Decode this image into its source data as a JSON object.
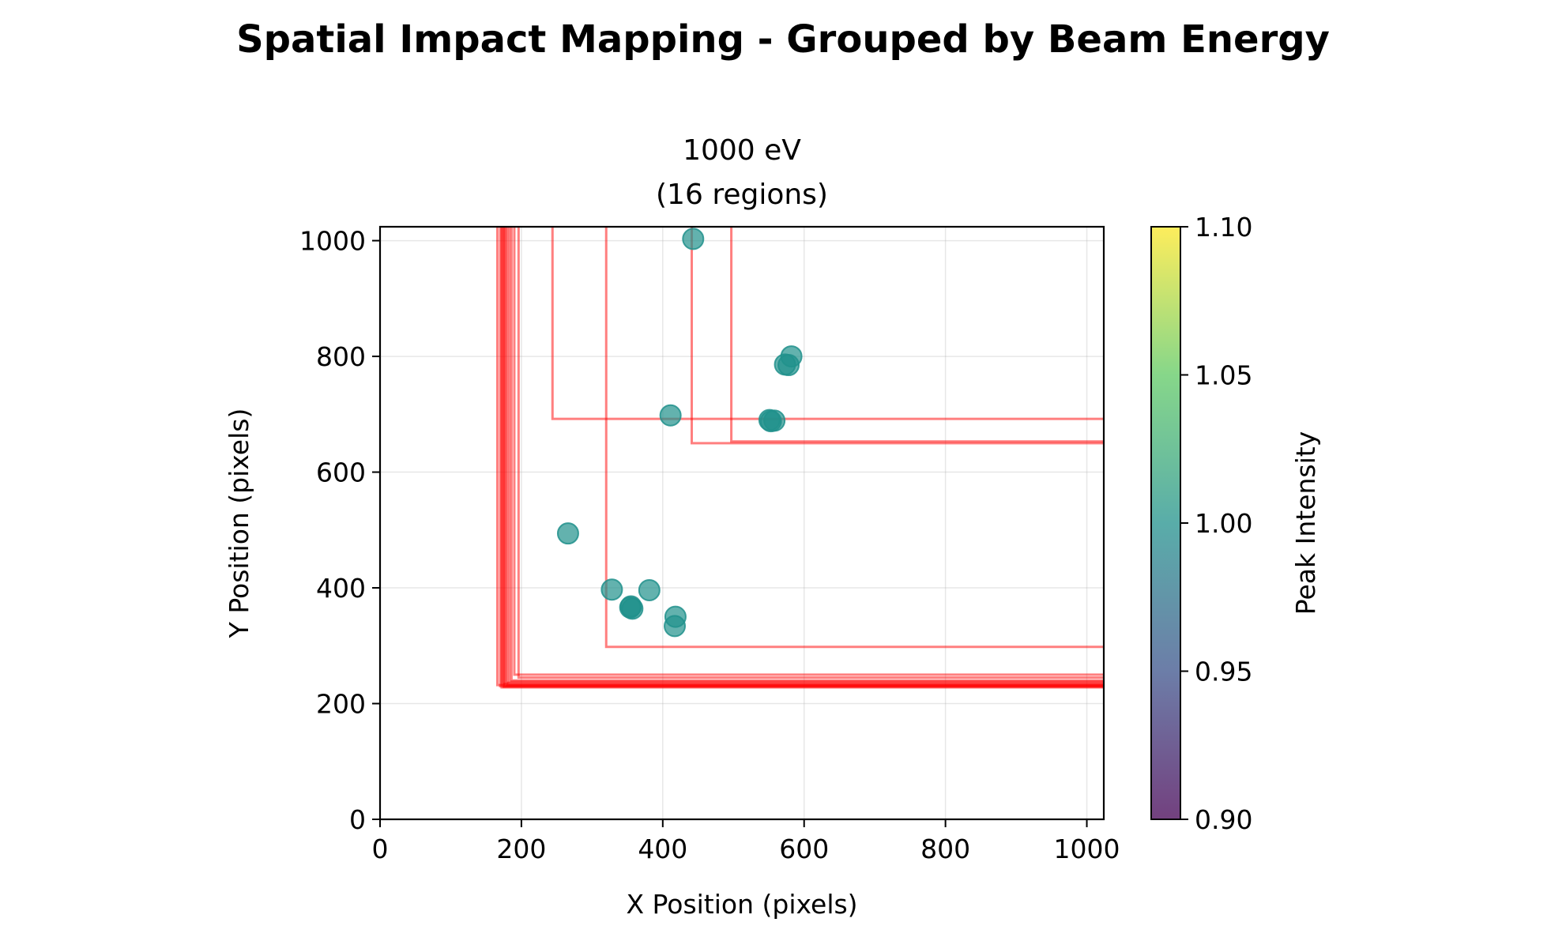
{
  "chart_data": {
    "type": "scatter",
    "suptitle": "Spatial Impact Mapping - Grouped by Beam Energy",
    "title_line1": "1000 eV",
    "title_line2": "(16 regions)",
    "xlabel": "X Position (pixels)",
    "ylabel": "Y Position (pixels)",
    "xlim": [
      0,
      1024
    ],
    "ylim": [
      0,
      1024
    ],
    "xticks": [
      0,
      200,
      400,
      600,
      800,
      1000
    ],
    "yticks": [
      0,
      200,
      400,
      600,
      800,
      1000
    ],
    "grid": true,
    "colorbar": {
      "label": "Peak Intensity",
      "range": [
        0.9,
        1.1
      ],
      "ticks": [
        "0.90",
        "0.95",
        "1.00",
        "1.05",
        "1.10"
      ],
      "colormap": "viridis"
    },
    "point_color": "#21918c",
    "region_color": "#ff0000",
    "points": [
      {
        "x": 443,
        "y": 1003,
        "intensity": 1.0
      },
      {
        "x": 582,
        "y": 800,
        "intensity": 1.0
      },
      {
        "x": 573,
        "y": 786,
        "intensity": 1.0
      },
      {
        "x": 578,
        "y": 785,
        "intensity": 1.0
      },
      {
        "x": 411,
        "y": 698,
        "intensity": 1.0
      },
      {
        "x": 551,
        "y": 690,
        "intensity": 1.0
      },
      {
        "x": 558,
        "y": 689,
        "intensity": 1.0
      },
      {
        "x": 266,
        "y": 494,
        "intensity": 1.0
      },
      {
        "x": 328,
        "y": 397,
        "intensity": 1.0
      },
      {
        "x": 381,
        "y": 396,
        "intensity": 1.0
      },
      {
        "x": 354,
        "y": 366,
        "intensity": 1.0
      },
      {
        "x": 357,
        "y": 364,
        "intensity": 1.0
      },
      {
        "x": 418,
        "y": 350,
        "intensity": 1.0
      },
      {
        "x": 417,
        "y": 334,
        "intensity": 1.0
      },
      {
        "x": 355,
        "y": 368,
        "intensity": 1.0
      },
      {
        "x": 553,
        "y": 688,
        "intensity": 1.0
      }
    ],
    "regions": [
      {
        "x0": 166,
        "y0": 232
      },
      {
        "x0": 170,
        "y0": 230
      },
      {
        "x0": 173,
        "y0": 234
      },
      {
        "x0": 175,
        "y0": 229
      },
      {
        "x0": 178,
        "y0": 236
      },
      {
        "x0": 180,
        "y0": 232
      },
      {
        "x0": 183,
        "y0": 238
      },
      {
        "x0": 186,
        "y0": 240
      },
      {
        "x0": 190,
        "y0": 250
      },
      {
        "x0": 196,
        "y0": 245
      },
      {
        "x0": 244,
        "y0": 692
      },
      {
        "x0": 320,
        "y0": 298
      },
      {
        "x0": 441,
        "y0": 650
      },
      {
        "x0": 497,
        "y0": 653
      },
      {
        "x0": 172,
        "y0": 228
      },
      {
        "x0": 176,
        "y0": 231
      }
    ]
  }
}
